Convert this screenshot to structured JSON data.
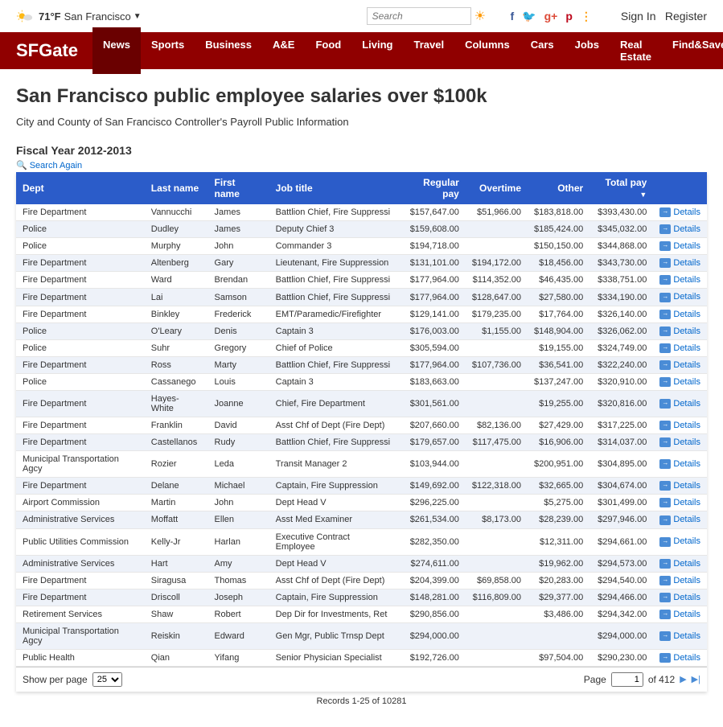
{
  "topbar": {
    "temp": "71°F",
    "location": "San Francisco",
    "search_placeholder": "Search",
    "signin": "Sign In",
    "register": "Register"
  },
  "nav": {
    "logo": "SFGate",
    "items": [
      "News",
      "Sports",
      "Business",
      "A&E",
      "Food",
      "Living",
      "Travel",
      "Columns",
      "Cars",
      "Jobs",
      "Real Estate",
      "Find&Save"
    ],
    "active_index": 0
  },
  "page": {
    "title": "San Francisco public employee salaries over $100k",
    "subtitle": "City and County of San Francisco Controller's Payroll Public Information",
    "fiscal_year": "Fiscal Year 2012-2013",
    "search_again": "Search Again"
  },
  "table": {
    "columns": [
      "Dept",
      "Last name",
      "First name",
      "Job title",
      "Regular pay",
      "Overtime",
      "Other",
      "Total pay",
      ""
    ],
    "sorted_col": 7,
    "details_label": "Details",
    "rows": [
      {
        "dept": "Fire Department",
        "last": "Vannucchi",
        "first": "James",
        "job": "Battlion Chief, Fire Suppressi",
        "reg": "$157,647.00",
        "ot": "$51,966.00",
        "other": "$183,818.00",
        "total": "$393,430.00"
      },
      {
        "dept": "Police",
        "last": "Dudley",
        "first": "James",
        "job": "Deputy Chief 3",
        "reg": "$159,608.00",
        "ot": "",
        "other": "$185,424.00",
        "total": "$345,032.00"
      },
      {
        "dept": "Police",
        "last": "Murphy",
        "first": "John",
        "job": "Commander 3",
        "reg": "$194,718.00",
        "ot": "",
        "other": "$150,150.00",
        "total": "$344,868.00"
      },
      {
        "dept": "Fire Department",
        "last": "Altenberg",
        "first": "Gary",
        "job": "Lieutenant, Fire Suppression",
        "reg": "$131,101.00",
        "ot": "$194,172.00",
        "other": "$18,456.00",
        "total": "$343,730.00"
      },
      {
        "dept": "Fire Department",
        "last": "Ward",
        "first": "Brendan",
        "job": "Battlion Chief, Fire Suppressi",
        "reg": "$177,964.00",
        "ot": "$114,352.00",
        "other": "$46,435.00",
        "total": "$338,751.00"
      },
      {
        "dept": "Fire Department",
        "last": "Lai",
        "first": "Samson",
        "job": "Battlion Chief, Fire Suppressi",
        "reg": "$177,964.00",
        "ot": "$128,647.00",
        "other": "$27,580.00",
        "total": "$334,190.00"
      },
      {
        "dept": "Fire Department",
        "last": "Binkley",
        "first": "Frederick",
        "job": "EMT/Paramedic/Firefighter",
        "reg": "$129,141.00",
        "ot": "$179,235.00",
        "other": "$17,764.00",
        "total": "$326,140.00"
      },
      {
        "dept": "Police",
        "last": "O'Leary",
        "first": "Denis",
        "job": "Captain 3",
        "reg": "$176,003.00",
        "ot": "$1,155.00",
        "other": "$148,904.00",
        "total": "$326,062.00"
      },
      {
        "dept": "Police",
        "last": "Suhr",
        "first": "Gregory",
        "job": "Chief of Police",
        "reg": "$305,594.00",
        "ot": "",
        "other": "$19,155.00",
        "total": "$324,749.00"
      },
      {
        "dept": "Fire Department",
        "last": "Ross",
        "first": "Marty",
        "job": "Battlion Chief, Fire Suppressi",
        "reg": "$177,964.00",
        "ot": "$107,736.00",
        "other": "$36,541.00",
        "total": "$322,240.00"
      },
      {
        "dept": "Police",
        "last": "Cassanego",
        "first": "Louis",
        "job": "Captain 3",
        "reg": "$183,663.00",
        "ot": "",
        "other": "$137,247.00",
        "total": "$320,910.00"
      },
      {
        "dept": "Fire Department",
        "last": "Hayes-White",
        "first": "Joanne",
        "job": "Chief, Fire Department",
        "reg": "$301,561.00",
        "ot": "",
        "other": "$19,255.00",
        "total": "$320,816.00"
      },
      {
        "dept": "Fire Department",
        "last": "Franklin",
        "first": "David",
        "job": "Asst Chf of Dept (Fire Dept)",
        "reg": "$207,660.00",
        "ot": "$82,136.00",
        "other": "$27,429.00",
        "total": "$317,225.00"
      },
      {
        "dept": "Fire Department",
        "last": "Castellanos",
        "first": "Rudy",
        "job": "Battlion Chief, Fire Suppressi",
        "reg": "$179,657.00",
        "ot": "$117,475.00",
        "other": "$16,906.00",
        "total": "$314,037.00"
      },
      {
        "dept": "Municipal Transportation Agcy",
        "last": "Rozier",
        "first": "Leda",
        "job": "Transit Manager 2",
        "reg": "$103,944.00",
        "ot": "",
        "other": "$200,951.00",
        "total": "$304,895.00"
      },
      {
        "dept": "Fire Department",
        "last": "Delane",
        "first": "Michael",
        "job": "Captain, Fire Suppression",
        "reg": "$149,692.00",
        "ot": "$122,318.00",
        "other": "$32,665.00",
        "total": "$304,674.00"
      },
      {
        "dept": "Airport Commission",
        "last": "Martin",
        "first": "John",
        "job": "Dept Head V",
        "reg": "$296,225.00",
        "ot": "",
        "other": "$5,275.00",
        "total": "$301,499.00"
      },
      {
        "dept": "Administrative Services",
        "last": "Moffatt",
        "first": "Ellen",
        "job": "Asst Med Examiner",
        "reg": "$261,534.00",
        "ot": "$8,173.00",
        "other": "$28,239.00",
        "total": "$297,946.00"
      },
      {
        "dept": "Public Utilities Commission",
        "last": "Kelly-Jr",
        "first": "Harlan",
        "job": "Executive Contract Employee",
        "reg": "$282,350.00",
        "ot": "",
        "other": "$12,311.00",
        "total": "$294,661.00"
      },
      {
        "dept": "Administrative Services",
        "last": "Hart",
        "first": "Amy",
        "job": "Dept Head V",
        "reg": "$274,611.00",
        "ot": "",
        "other": "$19,962.00",
        "total": "$294,573.00"
      },
      {
        "dept": "Fire Department",
        "last": "Siragusa",
        "first": "Thomas",
        "job": "Asst Chf of Dept (Fire Dept)",
        "reg": "$204,399.00",
        "ot": "$69,858.00",
        "other": "$20,283.00",
        "total": "$294,540.00"
      },
      {
        "dept": "Fire Department",
        "last": "Driscoll",
        "first": "Joseph",
        "job": "Captain, Fire Suppression",
        "reg": "$148,281.00",
        "ot": "$116,809.00",
        "other": "$29,377.00",
        "total": "$294,466.00"
      },
      {
        "dept": "Retirement Services",
        "last": "Shaw",
        "first": "Robert",
        "job": "Dep Dir for Investments, Ret",
        "reg": "$290,856.00",
        "ot": "",
        "other": "$3,486.00",
        "total": "$294,342.00"
      },
      {
        "dept": "Municipal Transportation Agcy",
        "last": "Reiskin",
        "first": "Edward",
        "job": "Gen Mgr, Public Trnsp Dept",
        "reg": "$294,000.00",
        "ot": "",
        "other": "",
        "total": "$294,000.00"
      },
      {
        "dept": "Public Health",
        "last": "Qian",
        "first": "Yifang",
        "job": "Senior Physician Specialist",
        "reg": "$192,726.00",
        "ot": "",
        "other": "$97,504.00",
        "total": "$290,230.00"
      }
    ]
  },
  "pager": {
    "show_per_page_label": "Show per page",
    "per_page_value": "25",
    "page_label": "Page",
    "page_value": "1",
    "of_label": "of 412",
    "records_info": "Records 1-25 of 10281"
  }
}
